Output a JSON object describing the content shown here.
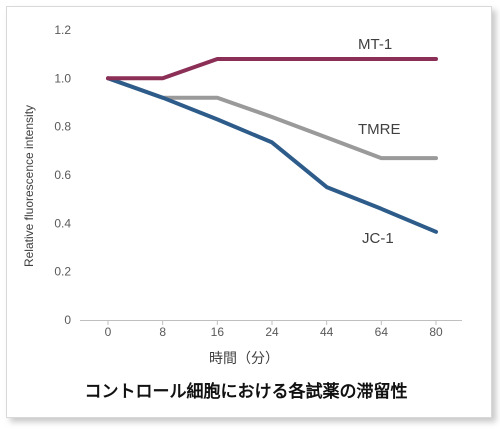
{
  "chart_data": {
    "type": "line",
    "title": "コントロール細胞における各試薬の滞留性",
    "xlabel": "時間（分）",
    "ylabel": "Relative fluorescence intensity",
    "categories": [
      "0",
      "8",
      "16",
      "24",
      "44",
      "64",
      "80"
    ],
    "ylim": [
      0,
      1.2
    ],
    "yticks": [
      "0",
      "0.2",
      "0.4",
      "0.6",
      "0.8",
      "1.0",
      "1.2"
    ],
    "grid": false,
    "legend": "direct labels",
    "series": [
      {
        "name": "MT-1",
        "color": "#8b2f57",
        "values": [
          1.0,
          1.0,
          1.08,
          1.08,
          1.08,
          1.08,
          1.08
        ]
      },
      {
        "name": "TMRE",
        "color": "#9a9a9a",
        "values": [
          1.0,
          0.92,
          0.92,
          0.84,
          0.755,
          0.67,
          0.67
        ]
      },
      {
        "name": "JC-1",
        "color": "#2e5c8a",
        "values": [
          1.0,
          0.92,
          0.83,
          0.735,
          0.55,
          0.46,
          0.365
        ]
      }
    ]
  }
}
